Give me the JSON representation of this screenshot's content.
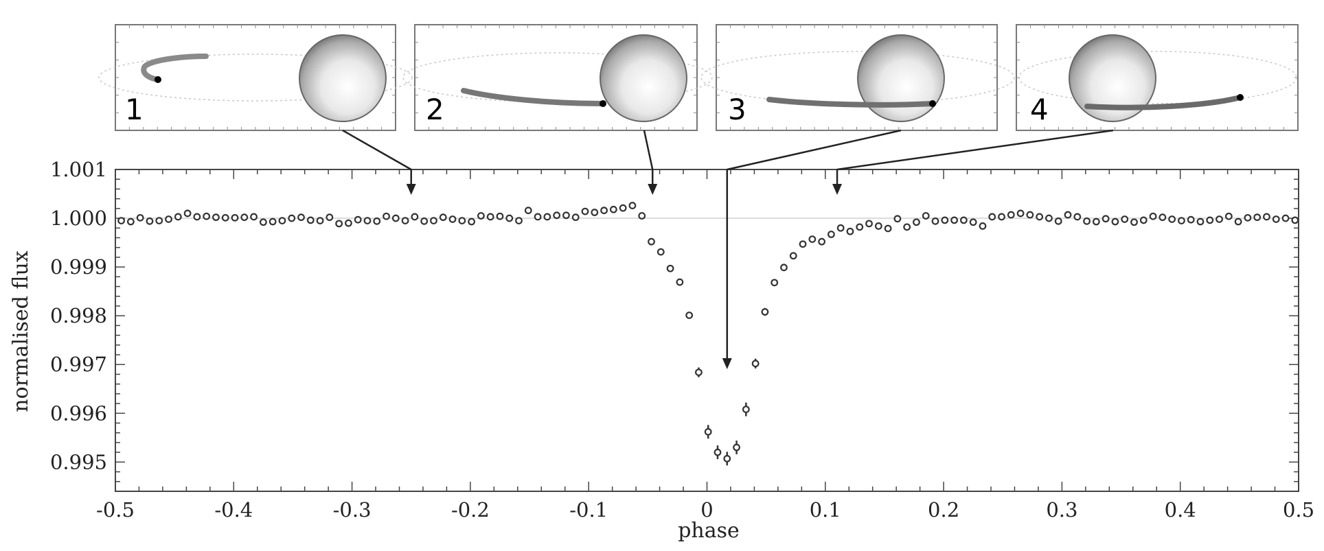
{
  "chart_data": {
    "type": "scatter",
    "xlabel": "phase",
    "ylabel": "normalised flux",
    "xlim": [
      -0.5,
      0.5
    ],
    "ylim": [
      0.9944,
      1.001
    ],
    "x_ticks": [
      "-0.5",
      "-0.4",
      "-0.3",
      "-0.2",
      "-0.1",
      "0",
      "0.1",
      "0.2",
      "0.3",
      "0.4",
      "0.5"
    ],
    "y_ticks": [
      "1.001",
      "1.000",
      "0.999",
      "0.998",
      "0.997",
      "0.996",
      "0.995"
    ],
    "grid": false,
    "reference_line": 1.0,
    "marker": "open-circle",
    "series": [
      {
        "x": [
          -0.495,
          -0.487,
          -0.479,
          -0.471,
          -0.463,
          -0.455,
          -0.447,
          -0.439,
          -0.431,
          -0.423,
          -0.415,
          -0.407,
          -0.399,
          -0.391,
          -0.383,
          -0.375,
          -0.367,
          -0.359,
          -0.351,
          -0.343,
          -0.335,
          -0.327,
          -0.319,
          -0.311,
          -0.303,
          -0.295,
          -0.287,
          -0.279,
          -0.271,
          -0.263,
          -0.255,
          -0.247,
          -0.239,
          -0.231,
          -0.223,
          -0.215,
          -0.207,
          -0.199,
          -0.191,
          -0.183,
          -0.175,
          -0.167,
          -0.159,
          -0.151,
          -0.143,
          -0.135,
          -0.127,
          -0.119,
          -0.111,
          -0.103,
          -0.095,
          -0.087,
          -0.079,
          -0.071,
          -0.063,
          -0.055,
          -0.047,
          -0.039,
          -0.031,
          -0.023,
          -0.015,
          -0.007,
          0.001,
          0.009,
          0.017,
          0.025,
          0.033,
          0.041,
          0.049,
          0.057,
          0.065,
          0.073,
          0.081,
          0.089,
          0.097,
          0.105,
          0.113,
          0.121,
          0.129,
          0.137,
          0.145,
          0.153,
          0.161,
          0.169,
          0.177,
          0.185,
          0.193,
          0.201,
          0.209,
          0.217,
          0.225,
          0.233,
          0.241,
          0.249,
          0.257,
          0.265,
          0.273,
          0.281,
          0.289,
          0.297,
          0.305,
          0.313,
          0.321,
          0.329,
          0.337,
          0.345,
          0.353,
          0.361,
          0.369,
          0.377,
          0.385,
          0.393,
          0.401,
          0.409,
          0.417,
          0.425,
          0.433,
          0.441,
          0.449,
          0.457,
          0.465,
          0.473,
          0.481,
          0.489,
          0.497
        ],
        "y": [
          0.99995,
          0.99993,
          1.00001,
          0.99994,
          0.99995,
          0.99998,
          1.00003,
          1.0001,
          1.00003,
          1.00004,
          1.00002,
          1.00001,
          1.00001,
          1.00002,
          1.00003,
          0.99992,
          0.99993,
          0.99995,
          1.0,
          1.00002,
          0.99996,
          0.99995,
          1.00002,
          0.99989,
          0.9999,
          0.99997,
          0.99995,
          0.99994,
          1.00004,
          1.0,
          0.99995,
          1.00003,
          0.99994,
          0.99995,
          1.00002,
          0.99998,
          0.99995,
          0.99993,
          1.00005,
          1.00003,
          1.00004,
          1.0,
          0.99995,
          1.00016,
          1.00003,
          1.00003,
          1.00006,
          1.00006,
          1.00002,
          1.00014,
          1.00012,
          1.00016,
          1.00018,
          1.00021,
          1.00026,
          1.00005,
          0.99952,
          0.99931,
          0.99897,
          0.99869,
          0.99801,
          0.99684,
          0.99562,
          0.9952,
          0.99507,
          0.9953,
          0.99608,
          0.99702,
          0.99808,
          0.99868,
          0.99899,
          0.99923,
          0.99947,
          0.99957,
          0.99952,
          0.99967,
          0.9998,
          0.99973,
          0.99982,
          0.99989,
          0.99984,
          0.99979,
          0.99999,
          0.99982,
          0.99992,
          1.00005,
          0.99994,
          0.99996,
          0.99996,
          0.99996,
          0.99992,
          0.99984,
          1.00003,
          1.00003,
          1.00007,
          1.0001,
          1.00007,
          1.00003,
          1.0,
          0.99994,
          1.00007,
          1.00003,
          0.99994,
          0.99993,
          0.99999,
          0.99993,
          0.99998,
          0.99992,
          0.99996,
          1.00004,
          1.00002,
          0.99998,
          0.99995,
          0.99997,
          0.99993,
          0.99996,
          0.99998,
          1.00004,
          0.99993,
          1.00001,
          1.00002,
          1.00003,
          0.99998,
          1.0,
          0.99996
        ],
        "error": [
          2e-05,
          2e-05,
          2e-05,
          2e-05,
          2e-05,
          2e-05,
          2e-05,
          2e-05,
          2e-05,
          2e-05,
          2e-05,
          2e-05,
          2e-05,
          2e-05,
          2e-05,
          2e-05,
          2e-05,
          2e-05,
          2e-05,
          2e-05,
          2e-05,
          2e-05,
          2e-05,
          2e-05,
          2e-05,
          2e-05,
          2e-05,
          2e-05,
          2e-05,
          2e-05,
          2e-05,
          2e-05,
          2e-05,
          2e-05,
          2e-05,
          2e-05,
          2e-05,
          2e-05,
          2e-05,
          2e-05,
          2e-05,
          2e-05,
          2e-05,
          2e-05,
          2e-05,
          2e-05,
          2e-05,
          2e-05,
          2e-05,
          2e-05,
          2e-05,
          2e-05,
          2e-05,
          2e-05,
          2e-05,
          2e-05,
          3e-05,
          5e-05,
          5e-05,
          6e-05,
          7e-05,
          0.0001,
          0.00014,
          0.00014,
          0.00014,
          0.00014,
          0.00014,
          0.0001,
          8e-05,
          6e-05,
          5e-05,
          4e-05,
          3e-05,
          3e-05,
          3e-05,
          2e-05,
          2e-05,
          2e-05,
          2e-05,
          2e-05,
          2e-05,
          2e-05,
          2e-05,
          2e-05,
          2e-05,
          2e-05,
          2e-05,
          2e-05,
          2e-05,
          2e-05,
          2e-05,
          2e-05,
          2e-05,
          2e-05,
          2e-05,
          2e-05,
          2e-05,
          2e-05,
          2e-05,
          2e-05,
          2e-05,
          2e-05,
          2e-05,
          2e-05,
          2e-05,
          2e-05,
          2e-05,
          2e-05,
          2e-05,
          2e-05,
          2e-05,
          2e-05,
          2e-05,
          2e-05,
          2e-05,
          2e-05,
          2e-05,
          2e-05,
          2e-05,
          2e-05,
          2e-05,
          2e-05,
          2e-05,
          2e-05,
          2e-05
        ]
      }
    ],
    "annotations": [
      {
        "panel": "1",
        "phase": -0.25
      },
      {
        "panel": "2",
        "phase": -0.046
      },
      {
        "panel": "3",
        "phase": 0.017
      },
      {
        "panel": "4",
        "phase": 0.11
      }
    ]
  },
  "panels": [
    {
      "label": "1"
    },
    {
      "label": "2"
    },
    {
      "label": "3"
    },
    {
      "label": "4"
    }
  ]
}
